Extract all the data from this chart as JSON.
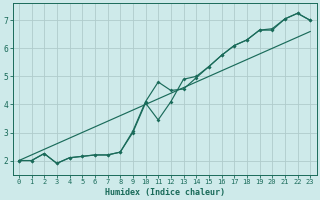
{
  "xlabel": "Humidex (Indice chaleur)",
  "xlim": [
    -0.5,
    23.5
  ],
  "ylim": [
    1.5,
    7.6
  ],
  "xticks": [
    0,
    1,
    2,
    3,
    4,
    5,
    6,
    7,
    8,
    9,
    10,
    11,
    12,
    13,
    14,
    15,
    16,
    17,
    18,
    19,
    20,
    21,
    22,
    23
  ],
  "yticks": [
    2,
    3,
    4,
    5,
    6,
    7
  ],
  "bg_color": "#ceeaea",
  "grid_color": "#b0cccc",
  "line_color": "#1a6b5a",
  "line1_x": [
    0,
    1,
    2,
    3,
    4,
    5,
    6,
    7,
    8,
    9,
    10,
    11,
    12,
    13,
    14,
    15,
    16,
    17,
    18,
    19,
    20,
    21,
    22,
    23
  ],
  "line1_y": [
    2.0,
    2.2,
    2.4,
    2.6,
    2.8,
    3.0,
    3.2,
    3.4,
    3.6,
    3.8,
    4.0,
    4.2,
    4.4,
    4.6,
    4.8,
    5.0,
    5.2,
    5.4,
    5.6,
    5.8,
    6.0,
    6.2,
    6.4,
    6.6
  ],
  "line2_x": [
    0,
    1,
    2,
    3,
    4,
    5,
    6,
    7,
    8,
    9,
    10,
    11,
    12,
    13,
    14,
    15,
    16,
    17,
    18,
    19,
    20,
    21,
    22,
    23
  ],
  "line2_y": [
    2.0,
    2.0,
    2.25,
    1.9,
    2.1,
    2.15,
    2.2,
    2.2,
    2.3,
    3.05,
    4.1,
    4.8,
    4.5,
    4.55,
    4.95,
    5.35,
    5.75,
    6.1,
    6.3,
    6.65,
    6.65,
    7.05,
    7.25,
    7.0
  ],
  "line3_x": [
    0,
    1,
    2,
    3,
    4,
    5,
    6,
    7,
    8,
    9,
    10,
    11,
    12,
    13,
    14,
    15,
    16,
    17,
    18,
    19,
    20,
    21,
    22,
    23
  ],
  "line3_y": [
    2.0,
    2.0,
    2.25,
    1.9,
    2.1,
    2.15,
    2.2,
    2.2,
    2.3,
    3.0,
    4.05,
    3.45,
    4.1,
    4.9,
    5.0,
    5.35,
    5.75,
    6.1,
    6.3,
    6.65,
    6.7,
    7.05,
    7.25,
    7.0
  ]
}
